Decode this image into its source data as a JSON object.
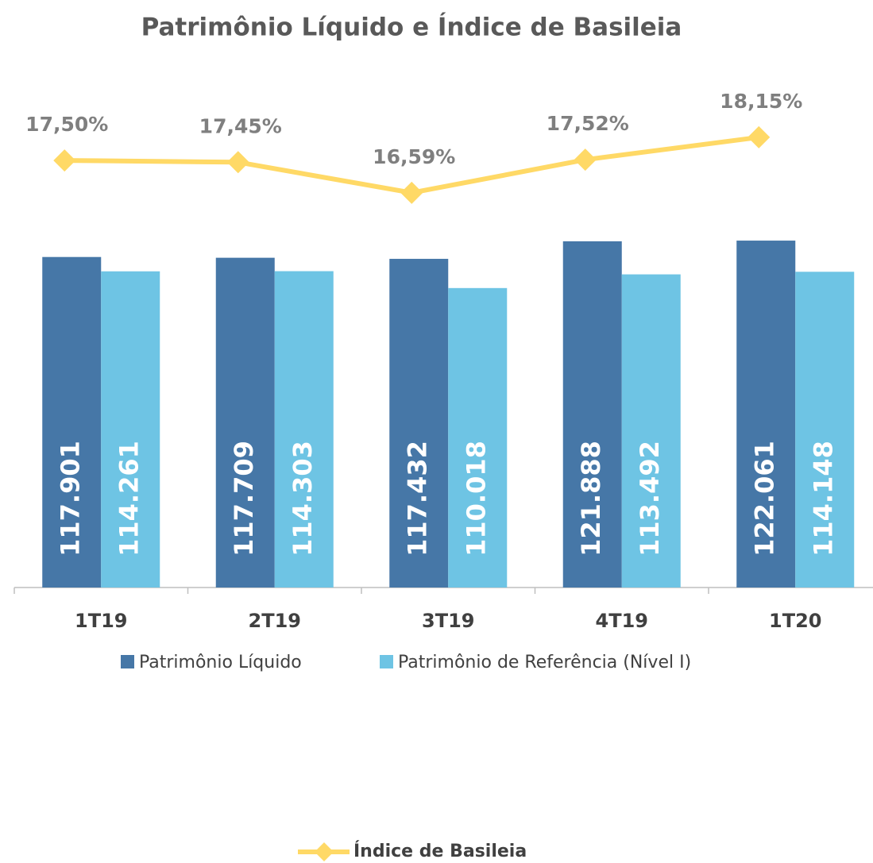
{
  "chart_data": {
    "type": "bar-line",
    "title": "Patrimônio Líquido e Índice de Basileia",
    "categories": [
      "1T19",
      "2T19",
      "3T19",
      "4T19",
      "1T20"
    ],
    "series": [
      {
        "name": "Patrimônio Líquido",
        "type": "bar",
        "color": "#4677a7",
        "values": [
          117.901,
          117.709,
          117.432,
          121.888,
          122.061
        ],
        "value_labels": [
          "117.901",
          "117.709",
          "117.432",
          "121.888",
          "122.061"
        ],
        "label_color": "#ffffff"
      },
      {
        "name": "Patrimônio de Referência (Nível I)",
        "type": "bar",
        "color": "#6ec4e4",
        "values": [
          114.261,
          114.303,
          110.018,
          113.492,
          114.148
        ],
        "value_labels": [
          "114.261",
          "114.303",
          "110.018",
          "113.492",
          "114.148"
        ],
        "label_color": "#ffffff"
      },
      {
        "name": "Índice de Basileia",
        "type": "line",
        "axis": "y2",
        "color": "#ffd966",
        "values": [
          17.5,
          17.45,
          16.59,
          17.52,
          18.15
        ],
        "value_labels": [
          "17,50%",
          "17,45%",
          "16,59%",
          "17,52%",
          "18,15%"
        ]
      }
    ],
    "ylim": [
      34,
      165
    ],
    "y2lim": [
      5.5,
      20
    ],
    "legend": "bottom"
  }
}
